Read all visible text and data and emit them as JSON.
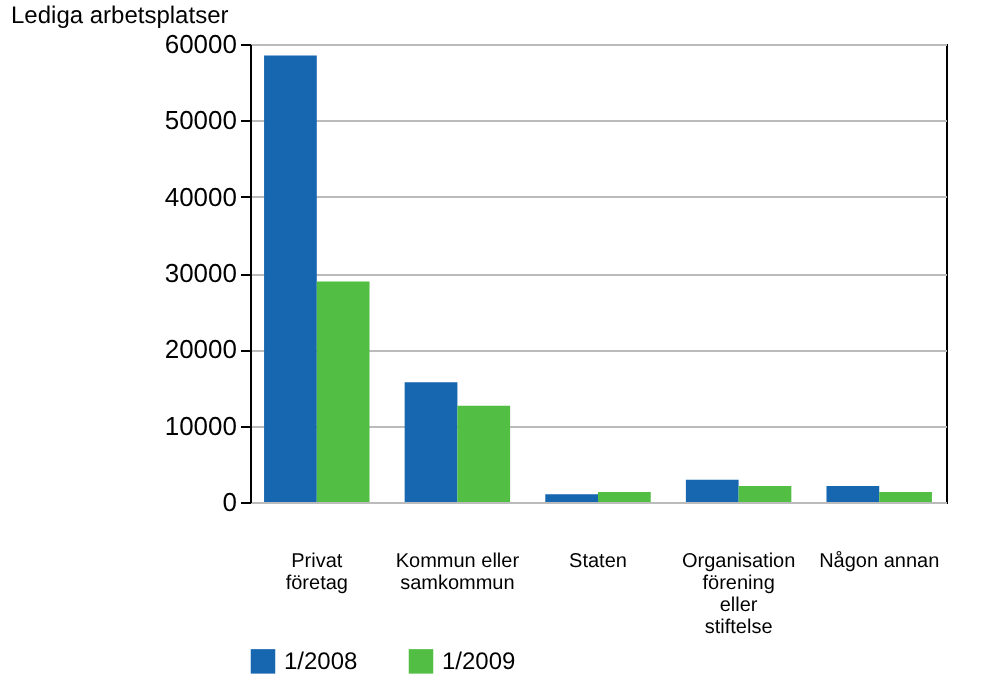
{
  "chart_data": {
    "type": "bar",
    "ylabel": "Lediga arbetsplatser",
    "categories": [
      "Privat företag",
      "Kommun eller samkommun",
      "Staten",
      "Organisation förening eller stiftelse",
      "Någon annan"
    ],
    "series": [
      {
        "name": "1/2008",
        "color": "#1767b0",
        "values": [
          58500,
          15700,
          1000,
          2900,
          2100
        ]
      },
      {
        "name": "1/2009",
        "color": "#52be43",
        "values": [
          28900,
          12600,
          1300,
          2100,
          1300
        ]
      }
    ],
    "ylim": [
      0,
      60000
    ],
    "yticks": [
      0,
      10000,
      20000,
      30000,
      40000,
      50000,
      60000
    ],
    "grid": "y",
    "legend": "bottom"
  }
}
